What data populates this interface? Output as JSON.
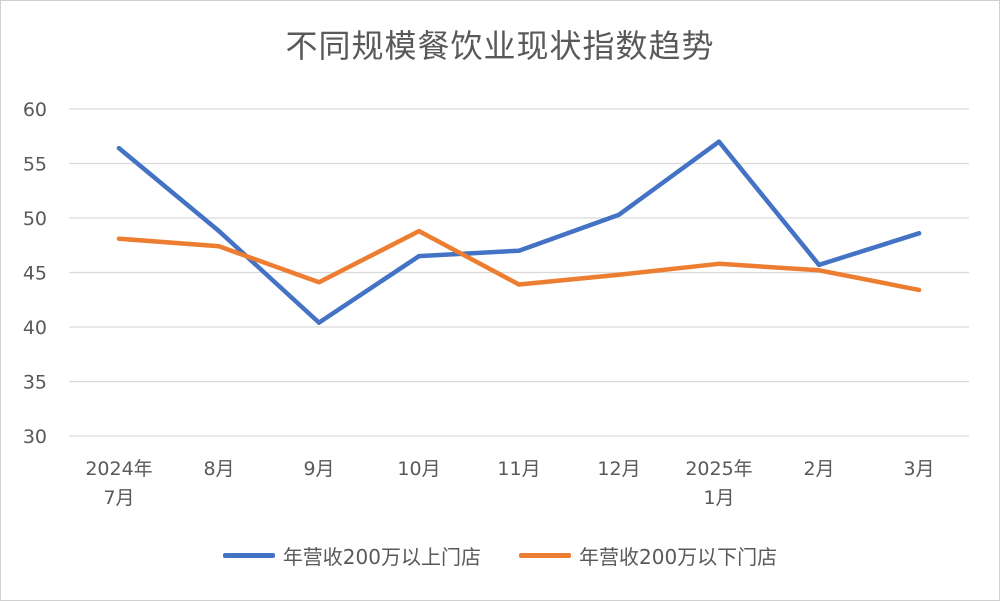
{
  "chart_data": {
    "type": "line",
    "title": "不同规模餐饮业现状指数趋势",
    "categories": [
      [
        "2024年",
        "7月"
      ],
      [
        "8月"
      ],
      [
        "9月"
      ],
      [
        "10月"
      ],
      [
        "11月"
      ],
      [
        "12月"
      ],
      [
        "2025年",
        "1月"
      ],
      [
        "2月"
      ],
      [
        "3月"
      ]
    ],
    "ylim": [
      30,
      60
    ],
    "yticks": [
      30,
      35,
      40,
      45,
      50,
      55,
      60
    ],
    "grid": true,
    "legend_position": "bottom",
    "series": [
      {
        "name": "年营收200万以上门店",
        "color": "#4472C4",
        "values": [
          56.4,
          48.8,
          40.4,
          46.5,
          47.0,
          50.3,
          57.0,
          45.7,
          48.6
        ]
      },
      {
        "name": "年营收200万以下门店",
        "color": "#ED7D31",
        "values": [
          48.1,
          47.4,
          44.1,
          48.8,
          43.9,
          44.8,
          45.8,
          45.2,
          43.4
        ]
      }
    ]
  }
}
